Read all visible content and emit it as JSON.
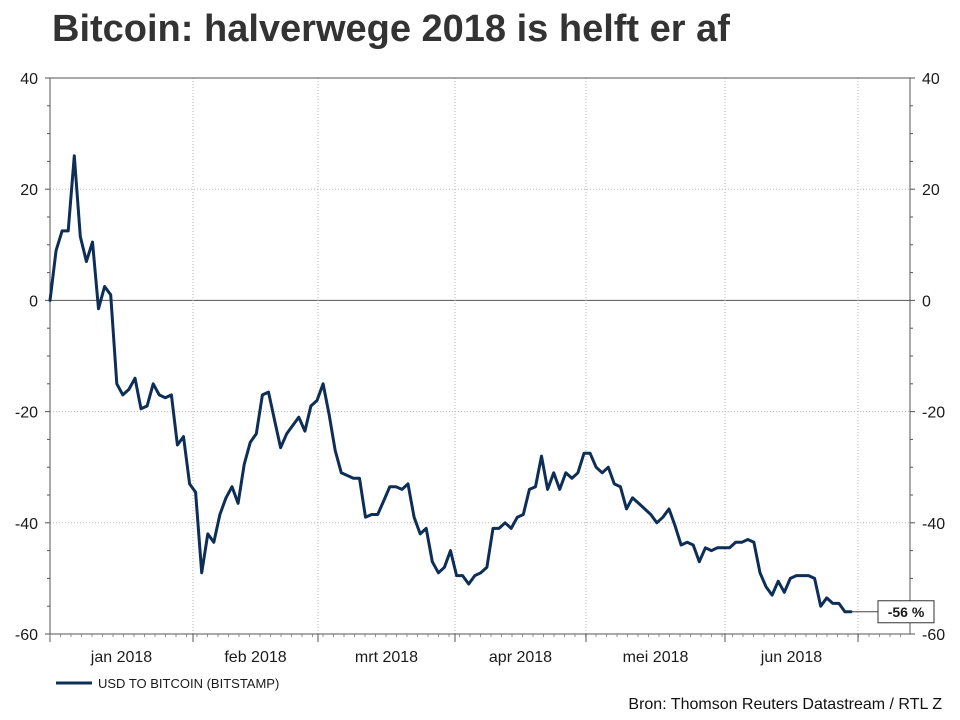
{
  "title": "Bitcoin: halverwege 2018 is helft er af",
  "source": "Bron: Thomson Reuters Datastream / RTL Z",
  "chart_data": {
    "type": "line",
    "title": "Bitcoin: halverwege 2018 is helft er af",
    "xlabel": "",
    "ylabel": "",
    "x_tick_labels": [
      "jan 2018",
      "feb 2018",
      "mrt 2018",
      "apr 2018",
      "mei 2018",
      "jun 2018"
    ],
    "ylim": [
      -60,
      40
    ],
    "y_ticks": [
      40,
      20,
      0,
      -20,
      -40,
      -60
    ],
    "grid": true,
    "legend": "bottom-left",
    "end_label": "-56 %",
    "series": [
      {
        "name": "USD TO BITCOIN (BITSTAMP)",
        "color": "#0d2e57",
        "values": [
          0,
          9,
          12.5,
          12.5,
          26,
          11.5,
          7,
          10.5,
          -1.5,
          2.5,
          1,
          -15,
          -17,
          -16,
          -14,
          -19.5,
          -19,
          -15,
          -17,
          -17.5,
          -17,
          -26,
          -24.5,
          -33,
          -34.5,
          -49,
          -42,
          -43.5,
          -38.5,
          -35.5,
          -33.5,
          -36.5,
          -29.5,
          -25.5,
          -24,
          -17,
          -16.5,
          -21.5,
          -26.5,
          -24,
          -22.5,
          -21,
          -23.5,
          -19,
          -18,
          -15,
          -20.5,
          -27,
          -31,
          -31.5,
          -32,
          -32,
          -39,
          -38.5,
          -38.5,
          -36,
          -33.5,
          -33.5,
          -34,
          -33,
          -39,
          -42,
          -41,
          -47,
          -49,
          -48,
          -45,
          -49.5,
          -49.5,
          -51,
          -49.5,
          -49,
          -48,
          -41,
          -41,
          -40,
          -41,
          -39,
          -38.5,
          -34,
          -33.5,
          -28,
          -34,
          -31,
          -34,
          -31,
          -32,
          -31,
          -27.5,
          -27.5,
          -30,
          -31,
          -30,
          -33,
          -33.5,
          -37.5,
          -35.5,
          -36.5,
          -37.5,
          -38.5,
          -40,
          -39,
          -37.5,
          -40.5,
          -44,
          -43.5,
          -44,
          -47,
          -44.5,
          -45,
          -44.5,
          -44.5,
          -44.5,
          -43.5,
          -43.5,
          -43,
          -43.5,
          -49,
          -51.5,
          -53,
          -50.5,
          -52.5,
          -50,
          -49.5,
          -49.5,
          -49.5,
          -50,
          -55,
          -53.5,
          -54.5,
          -54.5,
          -56,
          -56
        ]
      }
    ]
  }
}
